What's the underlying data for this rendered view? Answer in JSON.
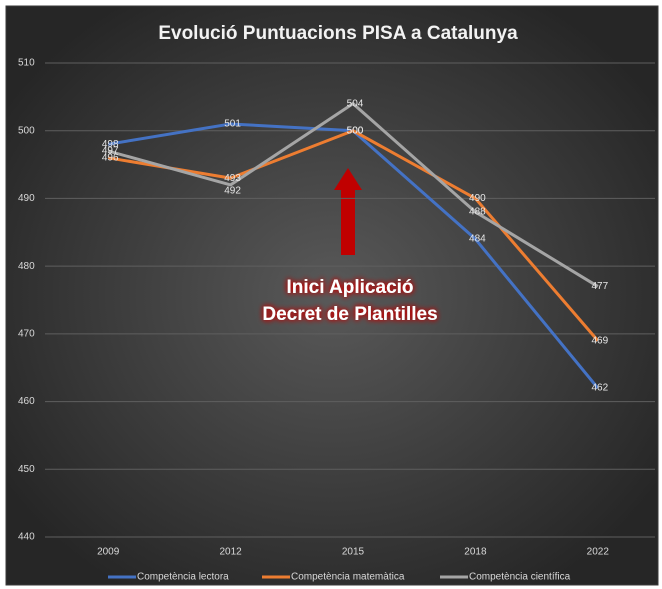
{
  "chart_data": {
    "type": "line",
    "title": "Evolució Puntuacions PISA a Catalunya",
    "categories": [
      "2009",
      "2012",
      "2015",
      "2018",
      "2022"
    ],
    "series": [
      {
        "name": "Competència lectora",
        "color": "#4472c4",
        "values": [
          498,
          501,
          500,
          484,
          462
        ]
      },
      {
        "name": "Competència matemàtica",
        "color": "#ed7d31",
        "values": [
          496,
          493,
          500,
          490,
          469
        ]
      },
      {
        "name": "Competència científica",
        "color": "#a5a5a5",
        "values": [
          497,
          492,
          504,
          488,
          477
        ]
      }
    ],
    "ylim": [
      440,
      510
    ],
    "yticks": [
      440,
      450,
      460,
      470,
      480,
      490,
      500,
      510
    ],
    "grid": true,
    "legend": "bottom",
    "annotation": [
      "Inici Aplicació",
      "Decret de Plantilles"
    ]
  }
}
